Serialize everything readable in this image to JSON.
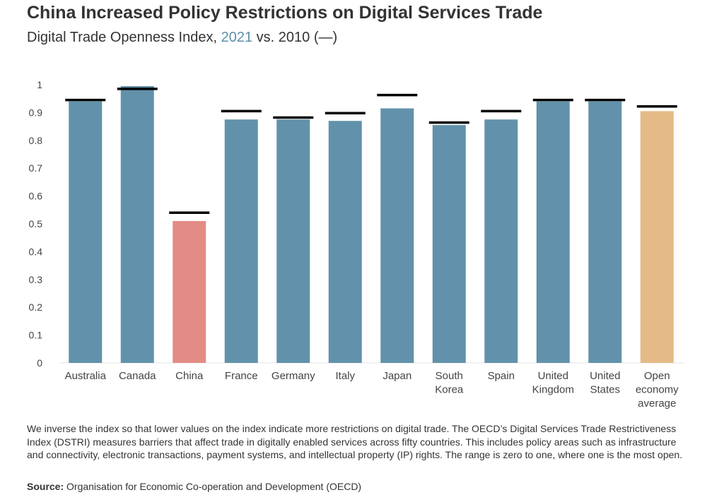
{
  "header": {
    "title": "China Increased Policy Restrictions on Digital Services Trade",
    "subtitle_prefix": "Digital Trade Openness Index, ",
    "subtitle_highlight": "2021",
    "subtitle_suffix": " vs. 2010 (—)"
  },
  "footer": {
    "note": "We inverse the index so that lower values on the index indicate more restrictions on digital trade. The OECD’s Digital Services Trade Restrictiveness Index (DSTRI) measures barriers that affect trade in digitally enabled services across fifty countries. This includes policy areas such as infrastructure and connectivity, electronic transactions, payment systems, and intellectual property (IP) rights. The range is zero to one, where one is the most open.",
    "source_label": "Source:",
    "source_text": " Organisation for Economic Co-operation and Development (OECD)"
  },
  "colors": {
    "default_bar": "#6292ab",
    "china_bar": "#e38c86",
    "average_bar": "#e4bb86",
    "marker_2010": "#000000",
    "highlight_2021": "#5e8fa8"
  },
  "chart_data": {
    "type": "bar",
    "title": "China Increased Policy Restrictions on Digital Services Trade",
    "subtitle": "Digital Trade Openness Index, 2021 vs. 2010 (—)",
    "categories": [
      "Australia",
      "Canada",
      "China",
      "France",
      "Germany",
      "Italy",
      "Japan",
      "South Korea",
      "Spain",
      "United Kingdom",
      "United States",
      "Open economy average"
    ],
    "category_lines": [
      [
        "Australia"
      ],
      [
        "Canada"
      ],
      [
        "China"
      ],
      [
        "France"
      ],
      [
        "Germany"
      ],
      [
        "Italy"
      ],
      [
        "Japan"
      ],
      [
        "South",
        "Korea"
      ],
      [
        "Spain"
      ],
      [
        "United",
        "Kingdom"
      ],
      [
        "United",
        "States"
      ],
      [
        "Open",
        "economy",
        "average"
      ]
    ],
    "series": [
      {
        "values": [
          0.94,
          0.995,
          0.51,
          0.875,
          0.875,
          0.87,
          0.915,
          0.855,
          0.875,
          0.94,
          0.94,
          0.905
        ]
      },
      {
        "values": [
          0.945,
          0.985,
          0.54,
          0.905,
          0.882,
          0.898,
          0.963,
          0.864,
          0.905,
          0.945,
          0.945,
          0.922
        ]
      }
    ],
    "yticks": [
      "0",
      "0.1",
      "0.2",
      "0.3",
      "0.4",
      "0.5",
      "0.6",
      "0.7",
      "0.8",
      "0.9",
      "1"
    ],
    "ylim": [
      0,
      1
    ],
    "grid": false,
    "xlabel": "",
    "ylabel": ""
  }
}
